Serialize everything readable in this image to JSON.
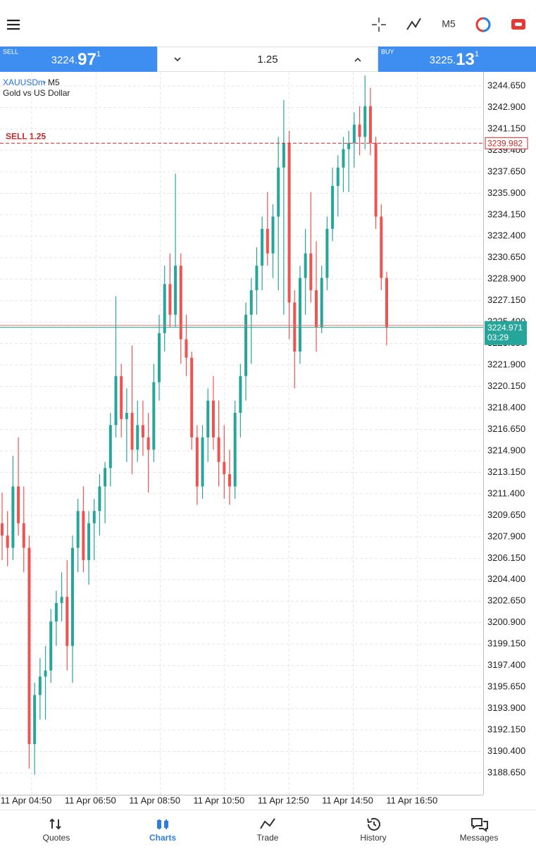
{
  "toolbar": {
    "timeframe": "M5"
  },
  "quote_bar": {
    "sell": {
      "label": "SELL",
      "price_prefix": "3224.",
      "price_big": "97",
      "price_sup": "1"
    },
    "volume": "1.25",
    "buy": {
      "label": "BUY",
      "price_prefix": "3225.",
      "price_big": "13",
      "price_sup": "1"
    }
  },
  "chart_data": {
    "type": "candlestick",
    "symbol": "XAUUSDm",
    "timeframe": "M5",
    "description": "Gold vs US Dollar",
    "open": [
      3209,
      3208,
      3207,
      3212,
      3209,
      3207,
      3191,
      3195,
      3196.5,
      3197,
      3201,
      3202.5,
      3203,
      3199,
      3207,
      3210,
      3206,
      3209,
      3210,
      3212,
      3213.5,
      3217,
      3221,
      3217.5,
      3218,
      3215,
      3217,
      3216,
      3215,
      3220.5,
      3224.5,
      3228.5,
      3226,
      3230,
      3224,
      3222.5,
      3216,
      3212,
      3216,
      3219,
      3216,
      3214,
      3213,
      3212,
      3218,
      3221,
      3226,
      3228,
      3230,
      3233,
      3231,
      3234,
      3238,
      3240,
      3227,
      3223,
      3229,
      3231,
      3228,
      3225,
      3229,
      3233,
      3236.5,
      3238,
      3239.5,
      3240,
      3241.5,
      3240.5,
      3243,
      3240,
      3234,
      3229
    ],
    "high": [
      3211.5,
      3210,
      3214.5,
      3216,
      3212,
      3208,
      3196,
      3198,
      3199,
      3202,
      3203.5,
      3205,
      3206,
      3208,
      3211,
      3212,
      3210,
      3211,
      3213,
      3214,
      3218,
      3227.5,
      3222,
      3220,
      3223.5,
      3219,
      3219,
      3218,
      3222,
      3226,
      3230,
      3231,
      3237.5,
      3231,
      3226,
      3223,
      3217,
      3217,
      3220,
      3221,
      3219,
      3217,
      3215,
      3219,
      3222,
      3227,
      3229,
      3231.5,
      3234,
      3236,
      3235,
      3240.5,
      3243.5,
      3241,
      3228,
      3230,
      3233,
      3236,
      3232,
      3230,
      3234,
      3238,
      3239,
      3240.5,
      3241,
      3242.5,
      3243,
      3245.5,
      3244.5,
      3240.5,
      3235,
      3229.5
    ],
    "low": [
      3206,
      3205.5,
      3206,
      3208,
      3205,
      3189,
      3188.5,
      3193,
      3193,
      3196,
      3199,
      3201,
      3197,
      3196,
      3205,
      3205,
      3204,
      3206,
      3208,
      3209,
      3212,
      3216,
      3216,
      3214,
      3213,
      3214,
      3214.5,
      3211.5,
      3214,
      3219,
      3223,
      3225,
      3225,
      3222,
      3221,
      3215,
      3210.5,
      3211,
      3214,
      3215,
      3212,
      3211,
      3210.5,
      3211,
      3216,
      3219,
      3222,
      3226,
      3228,
      3230,
      3229,
      3228,
      3226,
      3224,
      3220,
      3222,
      3226,
      3227,
      3223,
      3224.5,
      3228,
      3232,
      3234,
      3236,
      3236,
      3238,
      3239,
      3239.5,
      3239,
      3233,
      3228,
      3223.5
    ],
    "close": [
      3208,
      3207,
      3212,
      3209,
      3207,
      3191,
      3195,
      3196.5,
      3197,
      3201,
      3202.5,
      3203,
      3199,
      3207,
      3210,
      3206,
      3209,
      3210,
      3212,
      3213.5,
      3217,
      3221,
      3217.5,
      3218,
      3215,
      3217,
      3216,
      3215,
      3220.5,
      3224.5,
      3228.5,
      3226,
      3230,
      3224,
      3222.5,
      3216,
      3212,
      3216,
      3219,
      3216,
      3214,
      3213,
      3212,
      3218,
      3221,
      3226,
      3228,
      3230,
      3233,
      3231,
      3234,
      3238,
      3240,
      3227,
      3223,
      3229,
      3231,
      3228,
      3225,
      3229,
      3233,
      3236.5,
      3238,
      3239.5,
      3240,
      3241.5,
      3240.5,
      3243,
      3240,
      3234,
      3229,
      3224.971
    ],
    "ylim": [
      3186.87,
      3245.8
    ],
    "yticks": [
      {
        "value": 3188.65,
        "label": "3188.650"
      },
      {
        "value": 3190.4,
        "label": "3190.400"
      },
      {
        "value": 3192.15,
        "label": "3192.150"
      },
      {
        "value": 3193.9,
        "label": "3193.900"
      },
      {
        "value": 3195.65,
        "label": "3195.650"
      },
      {
        "value": 3197.4,
        "label": "3197.400"
      },
      {
        "value": 3199.15,
        "label": "3199.150"
      },
      {
        "value": 3200.9,
        "label": "3200.900"
      },
      {
        "value": 3202.65,
        "label": "3202.650"
      },
      {
        "value": 3204.4,
        "label": "3204.400"
      },
      {
        "value": 3206.15,
        "label": "3206.150"
      },
      {
        "value": 3207.9,
        "label": "3207.900"
      },
      {
        "value": 3209.65,
        "label": "3209.650"
      },
      {
        "value": 3211.4,
        "label": "3211.400"
      },
      {
        "value": 3213.15,
        "label": "3213.150"
      },
      {
        "value": 3214.9,
        "label": "3214.900"
      },
      {
        "value": 3216.65,
        "label": "3216.650"
      },
      {
        "value": 3218.4,
        "label": "3218.400"
      },
      {
        "value": 3220.15,
        "label": "3220.150"
      },
      {
        "value": 3221.9,
        "label": "3221.900"
      },
      {
        "value": 3223.65,
        "label": "3223.650"
      },
      {
        "value": 3225.4,
        "label": "3225.400"
      },
      {
        "value": 3227.15,
        "label": "3227.150"
      },
      {
        "value": 3228.9,
        "label": "3228.900"
      },
      {
        "value": 3230.65,
        "label": "3230.650"
      },
      {
        "value": 3232.4,
        "label": "3232.400"
      },
      {
        "value": 3234.15,
        "label": "3234.150"
      },
      {
        "value": 3235.9,
        "label": "3235.900"
      },
      {
        "value": 3237.65,
        "label": "3237.650"
      },
      {
        "value": 3239.4,
        "label": "3239.400"
      },
      {
        "value": 3241.15,
        "label": "3241.150"
      },
      {
        "value": 3242.9,
        "label": "3242.900"
      },
      {
        "value": 3244.65,
        "label": "3244.650"
      }
    ],
    "xtick_labels": [
      "11 Apr 04:50",
      "11 Apr 06:50",
      "11 Apr 08:50",
      "11 Apr 10:50",
      "11 Apr 12:50",
      "11 Apr 14:50",
      "11 Apr 16:50"
    ],
    "grid": true,
    "up_color": "#26a69a",
    "down_color": "#ef5350",
    "levels": [
      {
        "label": "SELL 1.25",
        "value": 3239.982,
        "color": "#c62828"
      }
    ],
    "bid": {
      "value": 3224.971,
      "timer": "03:29",
      "color": "#26a69a"
    },
    "ask": {
      "value": 3225.131,
      "color": "#e57373"
    }
  },
  "nav": [
    {
      "label": "Quotes"
    },
    {
      "label": "Charts"
    },
    {
      "label": "Trade"
    },
    {
      "label": "History"
    },
    {
      "label": "Messages"
    }
  ],
  "nav_active": 1
}
